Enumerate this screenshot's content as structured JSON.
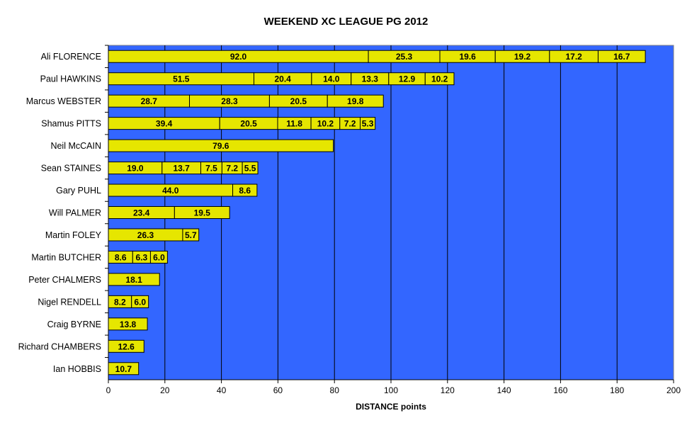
{
  "chart_data": {
    "type": "bar",
    "orientation": "horizontal",
    "stacked": true,
    "title": "WEEKEND XC LEAGUE PG 2012",
    "xlabel": "DISTANCE points",
    "xlim": [
      0,
      200
    ],
    "xticks": [
      0,
      20,
      40,
      60,
      80,
      100,
      120,
      140,
      160,
      180,
      200
    ],
    "grid": "vertical",
    "legend": "none",
    "colors": {
      "plot_background": "#3366ff",
      "bar_fill": "#e6e600",
      "bar_edge": "#000000",
      "gridline": "#000000"
    },
    "categories": [
      "Ali FLORENCE",
      "Paul HAWKINS",
      "Marcus WEBSTER",
      "Shamus PITTS",
      "Neil McCAIN",
      "Sean STAINES",
      "Gary PUHL",
      "Will PALMER",
      "Martin FOLEY",
      "Martin BUTCHER",
      "Peter CHALMERS",
      "Nigel RENDELL",
      "Craig BYRNE",
      "Richard CHAMBERS",
      "Ian HOBBIS"
    ],
    "segments": [
      [
        92.0,
        25.3,
        19.6,
        19.2,
        17.2,
        16.7
      ],
      [
        51.5,
        20.4,
        14.0,
        13.3,
        12.9,
        10.2
      ],
      [
        28.7,
        28.3,
        20.5,
        19.8
      ],
      [
        39.4,
        20.5,
        11.8,
        10.2,
        7.2,
        5.3
      ],
      [
        79.6
      ],
      [
        19.0,
        13.7,
        7.5,
        7.2,
        5.5
      ],
      [
        44.0,
        8.6
      ],
      [
        23.4,
        19.5
      ],
      [
        26.3,
        5.7
      ],
      [
        8.6,
        6.3,
        6.0
      ],
      [
        18.1
      ],
      [
        8.2,
        6.0
      ],
      [
        13.8
      ],
      [
        12.6
      ],
      [
        10.7
      ]
    ]
  }
}
